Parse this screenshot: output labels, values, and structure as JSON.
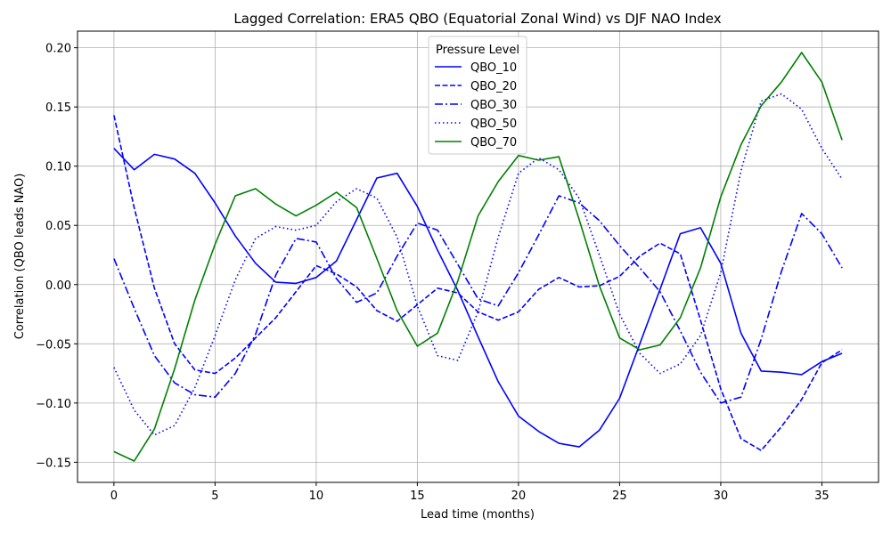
{
  "chart_data": {
    "type": "line",
    "title": "Lagged Correlation: ERA5 QBO (Equatorial Zonal Wind) vs DJF NAO Index",
    "xlabel": "Lead time (months)",
    "ylabel": "Correlation (QBO leads NAO)",
    "xlim": [
      -1.8,
      37.8
    ],
    "ylim": [
      -0.167,
      0.214
    ],
    "xticks": [
      0,
      5,
      10,
      15,
      20,
      25,
      30,
      35
    ],
    "xtick_labels": [
      "0",
      "5",
      "10",
      "15",
      "20",
      "25",
      "30",
      "35"
    ],
    "yticks": [
      -0.15,
      -0.1,
      -0.05,
      0.0,
      0.05,
      0.1,
      0.15,
      0.2
    ],
    "ytick_labels": [
      "−0.15",
      "−0.10",
      "−0.05",
      "0.00",
      "0.05",
      "0.10",
      "0.15",
      "0.20"
    ],
    "grid": true,
    "legend_title": "Pressure Level",
    "legend_position": "top-center",
    "x": [
      0,
      1,
      2,
      3,
      4,
      5,
      6,
      7,
      8,
      9,
      10,
      11,
      12,
      13,
      14,
      15,
      16,
      17,
      18,
      19,
      20,
      21,
      22,
      23,
      24,
      25,
      26,
      27,
      28,
      29,
      30,
      31,
      32,
      33,
      34,
      35,
      36
    ],
    "series": [
      {
        "name": "QBO_10",
        "color": "#0000ff",
        "dash": "solid",
        "values": [
          0.115,
          0.097,
          0.11,
          0.106,
          0.094,
          0.069,
          0.041,
          0.018,
          0.002,
          0.001,
          0.006,
          0.02,
          0.055,
          0.09,
          0.094,
          0.066,
          0.029,
          -0.005,
          -0.044,
          -0.082,
          -0.111,
          -0.124,
          -0.134,
          -0.137,
          -0.123,
          -0.096,
          -0.05,
          -0.004,
          0.043,
          0.048,
          0.018,
          -0.041,
          -0.073,
          -0.074,
          -0.076,
          -0.065,
          -0.058
        ]
      },
      {
        "name": "QBO_20",
        "color": "#0000ff",
        "dash": "dashed",
        "values": [
          0.143,
          0.065,
          -0.003,
          -0.05,
          -0.072,
          -0.075,
          -0.062,
          -0.045,
          -0.028,
          -0.006,
          0.016,
          0.009,
          -0.002,
          -0.022,
          -0.031,
          -0.017,
          -0.003,
          -0.007,
          -0.023,
          -0.03,
          -0.023,
          -0.004,
          0.006,
          -0.002,
          -0.001,
          0.007,
          0.024,
          0.035,
          0.026,
          -0.03,
          -0.088,
          -0.13,
          -0.14,
          -0.12,
          -0.097,
          -0.066,
          -0.055
        ]
      },
      {
        "name": "QBO_30",
        "color": "#0000ff",
        "dash": "dashdot",
        "values": [
          0.022,
          -0.02,
          -0.06,
          -0.083,
          -0.093,
          -0.095,
          -0.075,
          -0.042,
          0.008,
          0.039,
          0.036,
          0.005,
          -0.015,
          -0.007,
          0.024,
          0.052,
          0.046,
          0.017,
          -0.012,
          -0.018,
          0.01,
          0.042,
          0.075,
          0.069,
          0.054,
          0.033,
          0.014,
          -0.006,
          -0.039,
          -0.074,
          -0.1,
          -0.095,
          -0.046,
          0.011,
          0.06,
          0.043,
          0.014
        ]
      },
      {
        "name": "QBO_50",
        "color": "#0000ff",
        "dash": "dotted",
        "values": [
          -0.07,
          -0.106,
          -0.127,
          -0.119,
          -0.087,
          -0.043,
          0.004,
          0.039,
          0.049,
          0.046,
          0.05,
          0.07,
          0.081,
          0.073,
          0.04,
          -0.018,
          -0.06,
          -0.064,
          -0.023,
          0.04,
          0.094,
          0.107,
          0.097,
          0.073,
          0.025,
          -0.025,
          -0.058,
          -0.075,
          -0.067,
          -0.043,
          0.01,
          0.096,
          0.155,
          0.161,
          0.148,
          0.115,
          0.089
        ]
      },
      {
        "name": "QBO_70",
        "color": "#008000",
        "dash": "solid",
        "values": [
          -0.141,
          -0.149,
          -0.122,
          -0.071,
          -0.013,
          0.034,
          0.075,
          0.081,
          0.068,
          0.058,
          0.067,
          0.078,
          0.065,
          0.022,
          -0.022,
          -0.052,
          -0.041,
          0.003,
          0.058,
          0.087,
          0.109,
          0.105,
          0.108,
          0.055,
          -0.001,
          -0.045,
          -0.055,
          -0.051,
          -0.028,
          0.014,
          0.074,
          0.118,
          0.151,
          0.171,
          0.196,
          0.171,
          0.122
        ]
      }
    ]
  }
}
